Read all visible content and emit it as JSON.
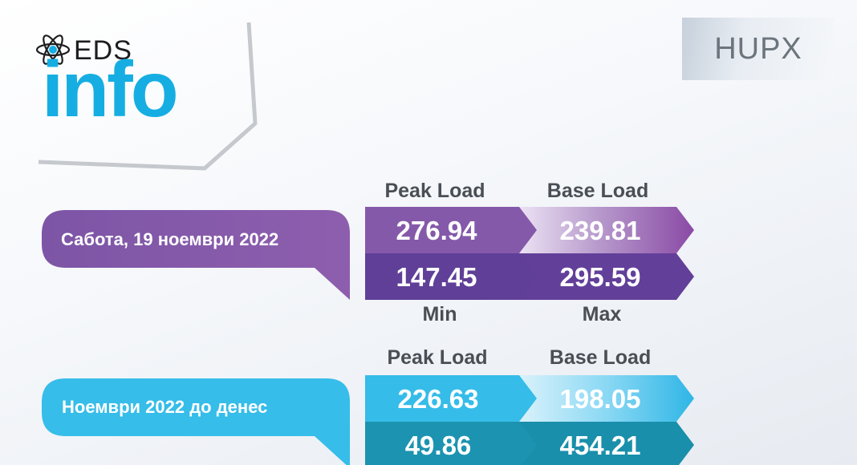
{
  "logo": {
    "top_text": "EDS",
    "main_text": "info",
    "icon": "atom-icon"
  },
  "badge": {
    "label": "HUPX"
  },
  "colors": {
    "info_blue": "#16aee2",
    "purple_light": "#8a5aaa",
    "purple_dark": "#5c3f95",
    "cyan_light": "#35bce9",
    "teal_dark": "#1b8fad"
  },
  "section_day": {
    "label": "Сабота, 19 ноември 2022",
    "headers": [
      "Peak Load",
      "Base Load"
    ],
    "row1": {
      "peak": "276.94",
      "base": "239.81"
    },
    "row2": {
      "min": "147.45",
      "max": "295.59"
    },
    "footers": [
      "Min",
      "Max"
    ]
  },
  "section_month": {
    "label": "Ноември 2022 до денес",
    "headers": [
      "Peak Load",
      "Base Load"
    ],
    "row1": {
      "peak": "226.63",
      "base": "198.05"
    },
    "row2": {
      "min": "49.86",
      "max": "454.21"
    }
  }
}
